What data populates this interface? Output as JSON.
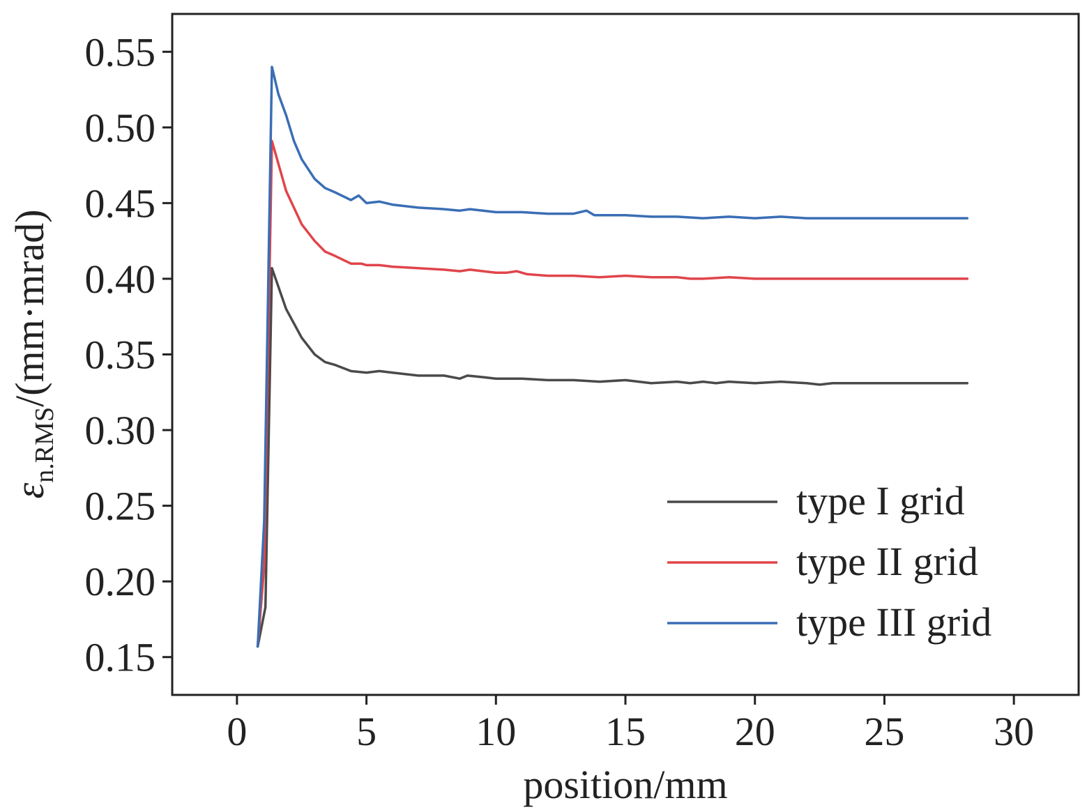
{
  "chart_data": {
    "type": "line",
    "xlabel": "position/mm",
    "ylabel": {
      "symbol": "ε",
      "subscript": "n.RMS",
      "unit": "/(mm·mrad)"
    },
    "xlim": [
      -2.5,
      32.5
    ],
    "ylim": [
      0.125,
      0.575
    ],
    "x_ticks": [
      0,
      5,
      10,
      15,
      20,
      25,
      30
    ],
    "x_tick_labels": [
      "0",
      "5",
      "10",
      "15",
      "20",
      "25",
      "30"
    ],
    "y_ticks": [
      0.15,
      0.2,
      0.25,
      0.3,
      0.35,
      0.4,
      0.45,
      0.5,
      0.55
    ],
    "y_tick_labels": [
      "0.15",
      "0.20",
      "0.25",
      "0.30",
      "0.35",
      "0.40",
      "0.45",
      "0.50",
      "0.55"
    ],
    "grid": false,
    "legend_position": "bottom-right",
    "series": [
      {
        "name": "type I grid",
        "color": "#4a4a4a",
        "x": [
          0.8,
          1.1,
          1.35,
          1.9,
          2.5,
          3.0,
          3.4,
          3.8,
          4.4,
          5.0,
          5.5,
          6.0,
          7.0,
          8.0,
          8.6,
          8.9,
          9.5,
          10.0,
          11.0,
          12.0,
          13.0,
          14.0,
          15.0,
          16.0,
          17.0,
          17.5,
          18.0,
          18.5,
          19.0,
          20.0,
          21.0,
          22.0,
          22.5,
          23.0,
          24.0,
          25.0,
          26.0,
          27.0,
          28.2
        ],
        "y": [
          0.157,
          0.183,
          0.407,
          0.38,
          0.361,
          0.35,
          0.345,
          0.343,
          0.339,
          0.338,
          0.339,
          0.338,
          0.336,
          0.336,
          0.334,
          0.336,
          0.335,
          0.334,
          0.334,
          0.333,
          0.333,
          0.332,
          0.333,
          0.331,
          0.332,
          0.331,
          0.332,
          0.331,
          0.332,
          0.331,
          0.332,
          0.331,
          0.33,
          0.331,
          0.331,
          0.331,
          0.331,
          0.331,
          0.331
        ]
      },
      {
        "name": "type II grid",
        "color": "#e0454a",
        "x": [
          0.8,
          1.05,
          1.35,
          1.9,
          2.5,
          3.0,
          3.4,
          3.8,
          4.4,
          4.8,
          5.0,
          5.5,
          6.0,
          7.0,
          8.0,
          8.6,
          9.0,
          9.5,
          10.0,
          10.4,
          10.8,
          11.2,
          12.0,
          13.0,
          14.0,
          15.0,
          16.0,
          17.0,
          17.5,
          18.0,
          19.0,
          20.0,
          21.0,
          22.0,
          23.0,
          24.0,
          25.0,
          26.0,
          27.0,
          28.2
        ],
        "y": [
          0.157,
          0.21,
          0.491,
          0.458,
          0.436,
          0.425,
          0.418,
          0.415,
          0.41,
          0.41,
          0.409,
          0.409,
          0.408,
          0.407,
          0.406,
          0.405,
          0.406,
          0.405,
          0.404,
          0.404,
          0.405,
          0.403,
          0.402,
          0.402,
          0.401,
          0.402,
          0.401,
          0.401,
          0.4,
          0.4,
          0.401,
          0.4,
          0.4,
          0.4,
          0.4,
          0.4,
          0.4,
          0.4,
          0.4,
          0.4
        ]
      },
      {
        "name": "type III grid",
        "color": "#3a6eb5",
        "x": [
          0.8,
          1.05,
          1.35,
          1.6,
          1.9,
          2.2,
          2.5,
          3.0,
          3.4,
          3.8,
          4.4,
          4.7,
          5.0,
          5.5,
          6.0,
          7.0,
          8.0,
          8.6,
          9.0,
          9.5,
          10.0,
          11.0,
          12.0,
          13.0,
          13.5,
          13.8,
          14.0,
          15.0,
          16.0,
          17.0,
          18.0,
          19.0,
          20.0,
          21.0,
          22.0,
          23.0,
          24.0,
          25.0,
          26.0,
          27.0,
          28.2
        ],
        "y": [
          0.157,
          0.24,
          0.54,
          0.522,
          0.508,
          0.491,
          0.479,
          0.466,
          0.46,
          0.457,
          0.452,
          0.455,
          0.45,
          0.451,
          0.449,
          0.447,
          0.446,
          0.445,
          0.446,
          0.445,
          0.444,
          0.444,
          0.443,
          0.443,
          0.445,
          0.442,
          0.442,
          0.442,
          0.441,
          0.441,
          0.44,
          0.441,
          0.44,
          0.441,
          0.44,
          0.44,
          0.44,
          0.44,
          0.44,
          0.44,
          0.44
        ]
      }
    ]
  }
}
